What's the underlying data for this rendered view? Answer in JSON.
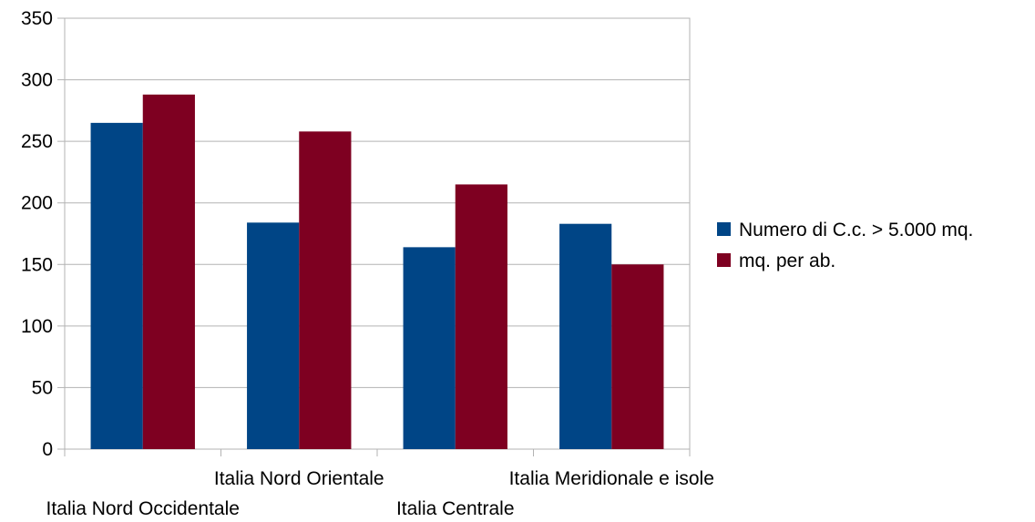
{
  "chart_data": {
    "type": "bar",
    "title": "",
    "xlabel": "",
    "ylabel": "",
    "categories": [
      "Italia Nord Occidentale",
      "Italia Nord Orientale",
      "Italia Centrale",
      "Italia Meridionale e isole"
    ],
    "series": [
      {
        "name": "Numero di C.c. > 5.000 mq.",
        "color": "#004586",
        "values": [
          265,
          184,
          164,
          183
        ]
      },
      {
        "name": "mq. per ab.",
        "color": "#7e0021",
        "values": [
          288,
          258,
          215,
          150
        ]
      }
    ],
    "ylim": [
      0,
      350
    ],
    "yticks": [
      0,
      50,
      100,
      150,
      200,
      250,
      300,
      350
    ],
    "grid": true,
    "legend_position": "right"
  }
}
